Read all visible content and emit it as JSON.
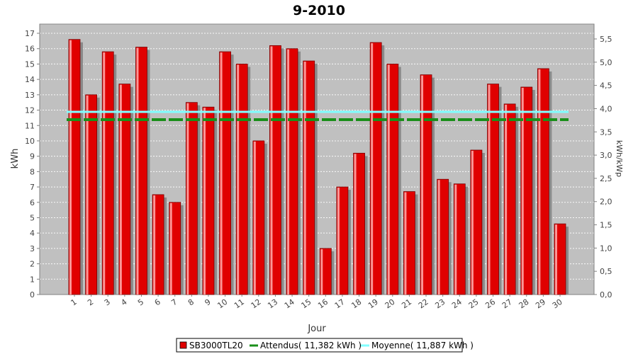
{
  "chart_data": {
    "type": "bar",
    "title": "9-2010",
    "xlabel": "Jour",
    "ylabel": "kWh",
    "y2label": "kWh/kWp",
    "ylim": [
      0,
      17.6
    ],
    "y2lim": [
      0,
      5.82
    ],
    "yticks": [
      "0",
      "1",
      "2",
      "3",
      "4",
      "5",
      "6",
      "7",
      "8",
      "9",
      "10",
      "11",
      "12",
      "13",
      "14",
      "15",
      "16",
      "17"
    ],
    "y2ticks": [
      "0,0",
      "0,5",
      "1,0",
      "1,5",
      "2,0",
      "2,5",
      "3,0",
      "3,5",
      "4,0",
      "4,5",
      "5,0",
      "5,5"
    ],
    "categories": [
      "1",
      "2",
      "3",
      "4",
      "5",
      "6",
      "7",
      "8",
      "9",
      "10",
      "11",
      "12",
      "13",
      "14",
      "15",
      "16",
      "17",
      "18",
      "19",
      "20",
      "21",
      "22",
      "23",
      "24",
      "25",
      "26",
      "27",
      "28",
      "29",
      "30"
    ],
    "series": [
      {
        "name": "SB3000TL20",
        "color": "#e00000",
        "values": [
          16.6,
          13.0,
          15.8,
          13.7,
          16.1,
          6.5,
          6.0,
          12.5,
          12.2,
          15.8,
          15.0,
          10.0,
          16.2,
          16.0,
          15.2,
          3.0,
          7.0,
          9.2,
          16.4,
          15.0,
          6.7,
          14.3,
          7.5,
          7.2,
          9.4,
          13.7,
          12.4,
          13.5,
          14.7,
          4.6
        ]
      }
    ],
    "reference_lines": [
      {
        "name": "Attendus",
        "value": 11.382,
        "color": "#1a8f1a",
        "style": "dashed",
        "legend": "Attendus( 11,382 kWh )"
      },
      {
        "name": "Moyenne",
        "value": 11.887,
        "color": "#80ffff",
        "style": "solid",
        "legend": "Moyenne( 11,887 kWh )"
      }
    ],
    "grid": true,
    "legend_position": "bottom",
    "colors": {
      "plot_background": "#c0c0c0",
      "grid": "#ffffff"
    }
  }
}
